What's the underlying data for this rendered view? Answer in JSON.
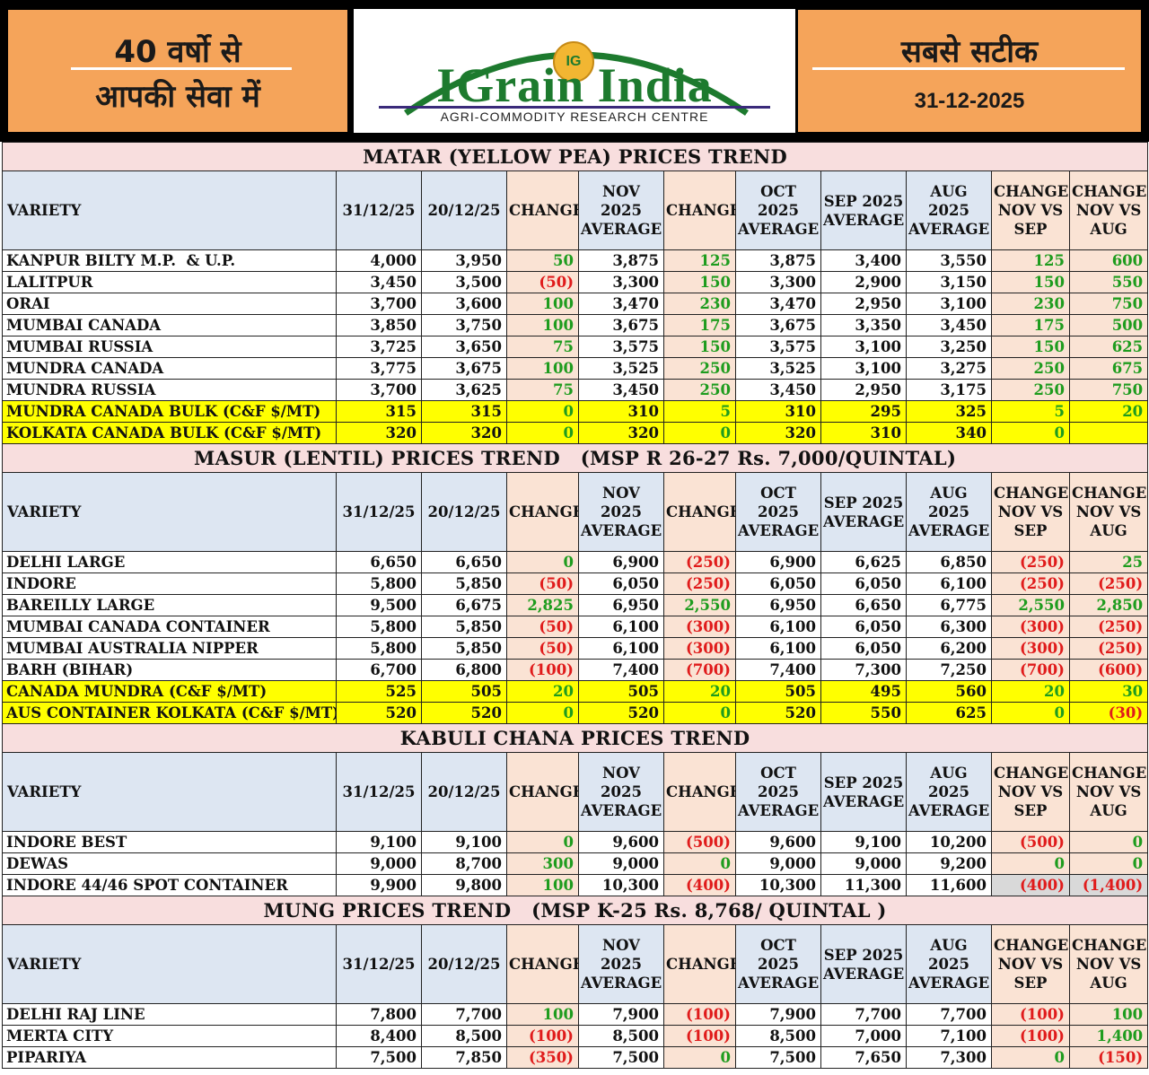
{
  "header": {
    "left_line1": "40 वर्षो से",
    "left_line2": "आपकी सेवा में",
    "logo_badge": "IG",
    "logo_title": "IGrain India",
    "logo_subtitle": "AGRI-COMMODITY RESEARCH CENTRE",
    "right_line1": "सबसे सटीक",
    "date": "31-12-2025"
  },
  "columns": [
    "VARIETY",
    "31/12/25",
    "20/12/25",
    "CHANGE",
    "NOV 2025 AVERAGE",
    "CHANGE",
    "OCT 2025 AVERAGE",
    "SEP 2025 AVERAGE",
    "AUG 2025 AVERAGE",
    "CHANGE NOV VS SEP",
    "CHANGE NOV VS AUG"
  ],
  "sections": [
    {
      "title": "MATAR (YELLOW PEA) PRICES TREND",
      "rows": [
        {
          "name": "KANPUR BILTY M.P.  & U.P.",
          "values": [
            "4,000",
            "3,950",
            "50",
            "3,875",
            "125",
            "3,875",
            "3,400",
            "3,550",
            "125",
            "600"
          ]
        },
        {
          "name": "LALITPUR",
          "values": [
            "3,450",
            "3,500",
            "(50)",
            "3,300",
            "150",
            "3,300",
            "2,900",
            "3,150",
            "150",
            "550"
          ]
        },
        {
          "name": "ORAI",
          "values": [
            "3,700",
            "3,600",
            "100",
            "3,470",
            "230",
            "3,470",
            "2,950",
            "3,100",
            "230",
            "750"
          ]
        },
        {
          "name": "MUMBAI CANADA",
          "values": [
            "3,850",
            "3,750",
            "100",
            "3,675",
            "175",
            "3,675",
            "3,350",
            "3,450",
            "175",
            "500"
          ]
        },
        {
          "name": "MUMBAI RUSSIA",
          "values": [
            "3,725",
            "3,650",
            "75",
            "3,575",
            "150",
            "3,575",
            "3,100",
            "3,250",
            "150",
            "625"
          ]
        },
        {
          "name": "MUNDRA CANADA",
          "values": [
            "3,775",
            "3,675",
            "100",
            "3,525",
            "250",
            "3,525",
            "3,100",
            "3,275",
            "250",
            "675"
          ]
        },
        {
          "name": "MUNDRA RUSSIA",
          "values": [
            "3,700",
            "3,625",
            "75",
            "3,450",
            "250",
            "3,450",
            "2,950",
            "3,175",
            "250",
            "750"
          ]
        },
        {
          "name": "MUNDRA CANADA BULK (C&F $/MT)",
          "highlight": true,
          "values": [
            "315",
            "315",
            "0",
            "310",
            "5",
            "310",
            "295",
            "325",
            "5",
            "20"
          ]
        },
        {
          "name": "KOLKATA CANADA BULK (C&F $/MT)",
          "highlight": true,
          "values": [
            "320",
            "320",
            "0",
            "320",
            "0",
            "320",
            "310",
            "340",
            "0",
            ""
          ]
        }
      ]
    },
    {
      "title": "MASUR (LENTIL) PRICES TREND   (MSP R 26-27 Rs. 7,000/QUINTAL)",
      "rows": [
        {
          "name": "DELHI LARGE",
          "values": [
            "6,650",
            "6,650",
            "0",
            "6,900",
            "(250)",
            "6,900",
            "6,625",
            "6,850",
            "(250)",
            "25"
          ]
        },
        {
          "name": "INDORE",
          "values": [
            "5,800",
            "5,850",
            "(50)",
            "6,050",
            "(250)",
            "6,050",
            "6,050",
            "6,100",
            "(250)",
            "(250)"
          ]
        },
        {
          "name": "BAREILLY LARGE",
          "values": [
            "9,500",
            "6,675",
            "2,825",
            "6,950",
            "2,550",
            "6,950",
            "6,650",
            "6,775",
            "2,550",
            "2,850"
          ]
        },
        {
          "name": "MUMBAI CANADA CONTAINER",
          "values": [
            "5,800",
            "5,850",
            "(50)",
            "6,100",
            "(300)",
            "6,100",
            "6,050",
            "6,300",
            "(300)",
            "(250)"
          ]
        },
        {
          "name": "MUMBAI AUSTRALIA NIPPER",
          "values": [
            "5,800",
            "5,850",
            "(50)",
            "6,100",
            "(300)",
            "6,100",
            "6,050",
            "6,200",
            "(300)",
            "(250)"
          ]
        },
        {
          "name": "BARH (BIHAR)",
          "values": [
            "6,700",
            "6,800",
            "(100)",
            "7,400",
            "(700)",
            "7,400",
            "7,300",
            "7,250",
            "(700)",
            "(600)"
          ]
        },
        {
          "name": "CANADA MUNDRA (C&F $/MT)",
          "highlight": true,
          "values": [
            "525",
            "505",
            "20",
            "505",
            "20",
            "505",
            "495",
            "560",
            "20",
            "30"
          ]
        },
        {
          "name": "AUS CONTAINER KOLKATA (C&F $/MT)",
          "highlight": true,
          "values": [
            "520",
            "520",
            "0",
            "520",
            "0",
            "520",
            "550",
            "625",
            "0",
            "(30)"
          ]
        }
      ]
    },
    {
      "title": "KABULI CHANA PRICES TREND",
      "rows": [
        {
          "name": "INDORE BEST",
          "values": [
            "9,100",
            "9,100",
            "0",
            "9,600",
            "(500)",
            "9,600",
            "9,100",
            "10,200",
            "(500)",
            "0"
          ]
        },
        {
          "name": "DEWAS",
          "values": [
            "9,000",
            "8,700",
            "300",
            "9,000",
            "0",
            "9,000",
            "9,000",
            "9,200",
            "0",
            "0"
          ]
        },
        {
          "name": "INDORE 44/46 SPOT CONTAINER",
          "grey_tail": true,
          "values": [
            "9,900",
            "9,800",
            "100",
            "10,300",
            "(400)",
            "10,300",
            "11,300",
            "11,600",
            "(400)",
            "(1,400)"
          ]
        }
      ]
    },
    {
      "title": "MUNG PRICES TREND   (MSP K-25 Rs. 8,768/ QUINTAL )",
      "rows": [
        {
          "name": "DELHI RAJ LINE",
          "values": [
            "7,800",
            "7,700",
            "100",
            "7,900",
            "(100)",
            "7,900",
            "7,700",
            "7,700",
            "(100)",
            "100"
          ]
        },
        {
          "name": "MERTA CITY",
          "values": [
            "8,400",
            "8,500",
            "(100)",
            "8,500",
            "(100)",
            "8,500",
            "7,000",
            "7,100",
            "(100)",
            "1,400"
          ]
        },
        {
          "name": "PIPARIYA",
          "values": [
            "7,500",
            "7,850",
            "(350)",
            "7,500",
            "0",
            "7,500",
            "7,650",
            "7,300",
            "0",
            "(150)"
          ]
        }
      ]
    }
  ],
  "colors": {
    "header_orange": "#f5a45a",
    "title_pink": "#f8dede",
    "header_blue": "#dde6f2",
    "change_peach": "#fae3d4",
    "highlight_yellow": "#ffff00",
    "positive_green": "#1e9c1e",
    "negative_red": "#e01b1b",
    "logo_green": "#1d7a2e"
  }
}
